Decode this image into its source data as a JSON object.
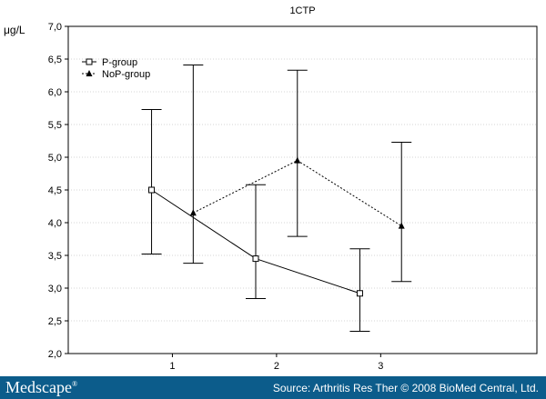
{
  "chart_data": {
    "type": "line",
    "title": "1CTP",
    "ylabel": "μg/L",
    "xlabel": "",
    "ylim": [
      2.0,
      7.0
    ],
    "yticks": [
      "2,0",
      "2,5",
      "3,0",
      "3,5",
      "4,0",
      "4,5",
      "5,0",
      "5,5",
      "6,0",
      "6,5",
      "7,0"
    ],
    "xlim": [
      0,
      4.5
    ],
    "xticks": [
      "1",
      "2",
      "3"
    ],
    "grid": "horizontal",
    "legend_position": "top-left",
    "series": [
      {
        "name": "P-group",
        "line_style": "solid",
        "marker": "open-square",
        "x": [
          0.8,
          1.8,
          2.8
        ],
        "y": [
          4.5,
          3.45,
          2.92
        ],
        "err_low": [
          3.52,
          2.84,
          2.34
        ],
        "err_high": [
          5.73,
          4.58,
          3.6
        ]
      },
      {
        "name": "NoP-group",
        "line_style": "dotted",
        "marker": "filled-triangle",
        "x": [
          1.2,
          2.2,
          3.2
        ],
        "y": [
          4.15,
          4.95,
          3.95
        ],
        "err_low": [
          3.38,
          3.79,
          3.1
        ],
        "err_high": [
          6.41,
          6.33,
          5.23
        ]
      }
    ]
  },
  "footer": {
    "brand": "Medscape",
    "brand_mark": "®",
    "source": "Source: Arthritis Res Ther © 2008 BioMed Central, Ltd."
  }
}
